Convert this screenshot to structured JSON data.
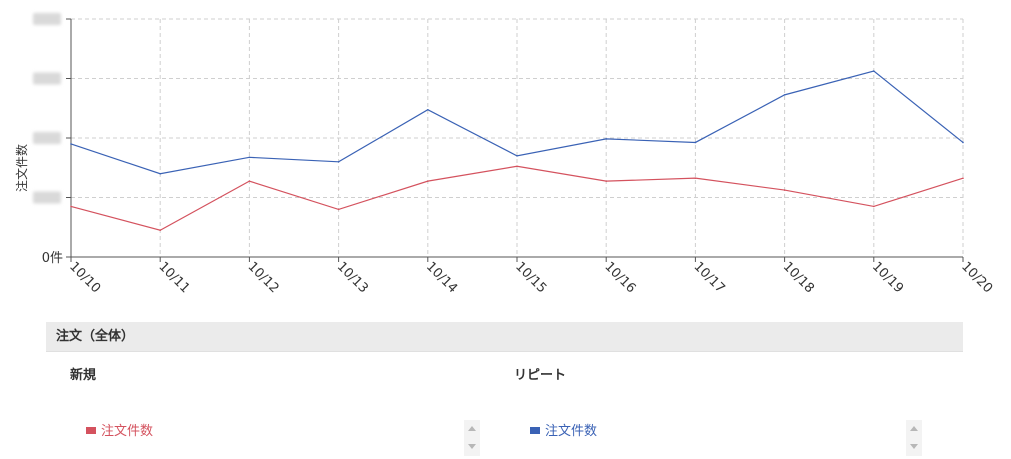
{
  "chart_data": {
    "type": "line",
    "ylabel": "注文件数",
    "yzero_label": "0件",
    "categories": [
      "10/10",
      "10/11",
      "10/12",
      "10/13",
      "10/14",
      "10/15",
      "10/16",
      "10/17",
      "10/18",
      "10/19",
      "10/20"
    ],
    "ylim": [
      0,
      8
    ],
    "grid": true,
    "series": [
      {
        "name": "注文件数 (リピート)",
        "color": "#3a62b5",
        "values": [
          3.8,
          2.8,
          3.35,
          3.2,
          4.95,
          3.4,
          3.97,
          3.85,
          5.45,
          6.25,
          3.85
        ]
      },
      {
        "name": "注文件数 (新規)",
        "color": "#d4525e",
        "values": [
          1.7,
          0.9,
          2.55,
          1.6,
          2.55,
          3.05,
          2.55,
          2.65,
          2.25,
          1.7,
          2.65
        ]
      }
    ]
  },
  "legend": {
    "header": "注文（全体）",
    "new_title": "新規",
    "new_item": "注文件数",
    "repeat_title": "リピート",
    "repeat_item": "注文件数"
  },
  "colors": {
    "repeat": "#3a62b5",
    "new": "#d4525e",
    "grid": "#cfcfcf"
  }
}
